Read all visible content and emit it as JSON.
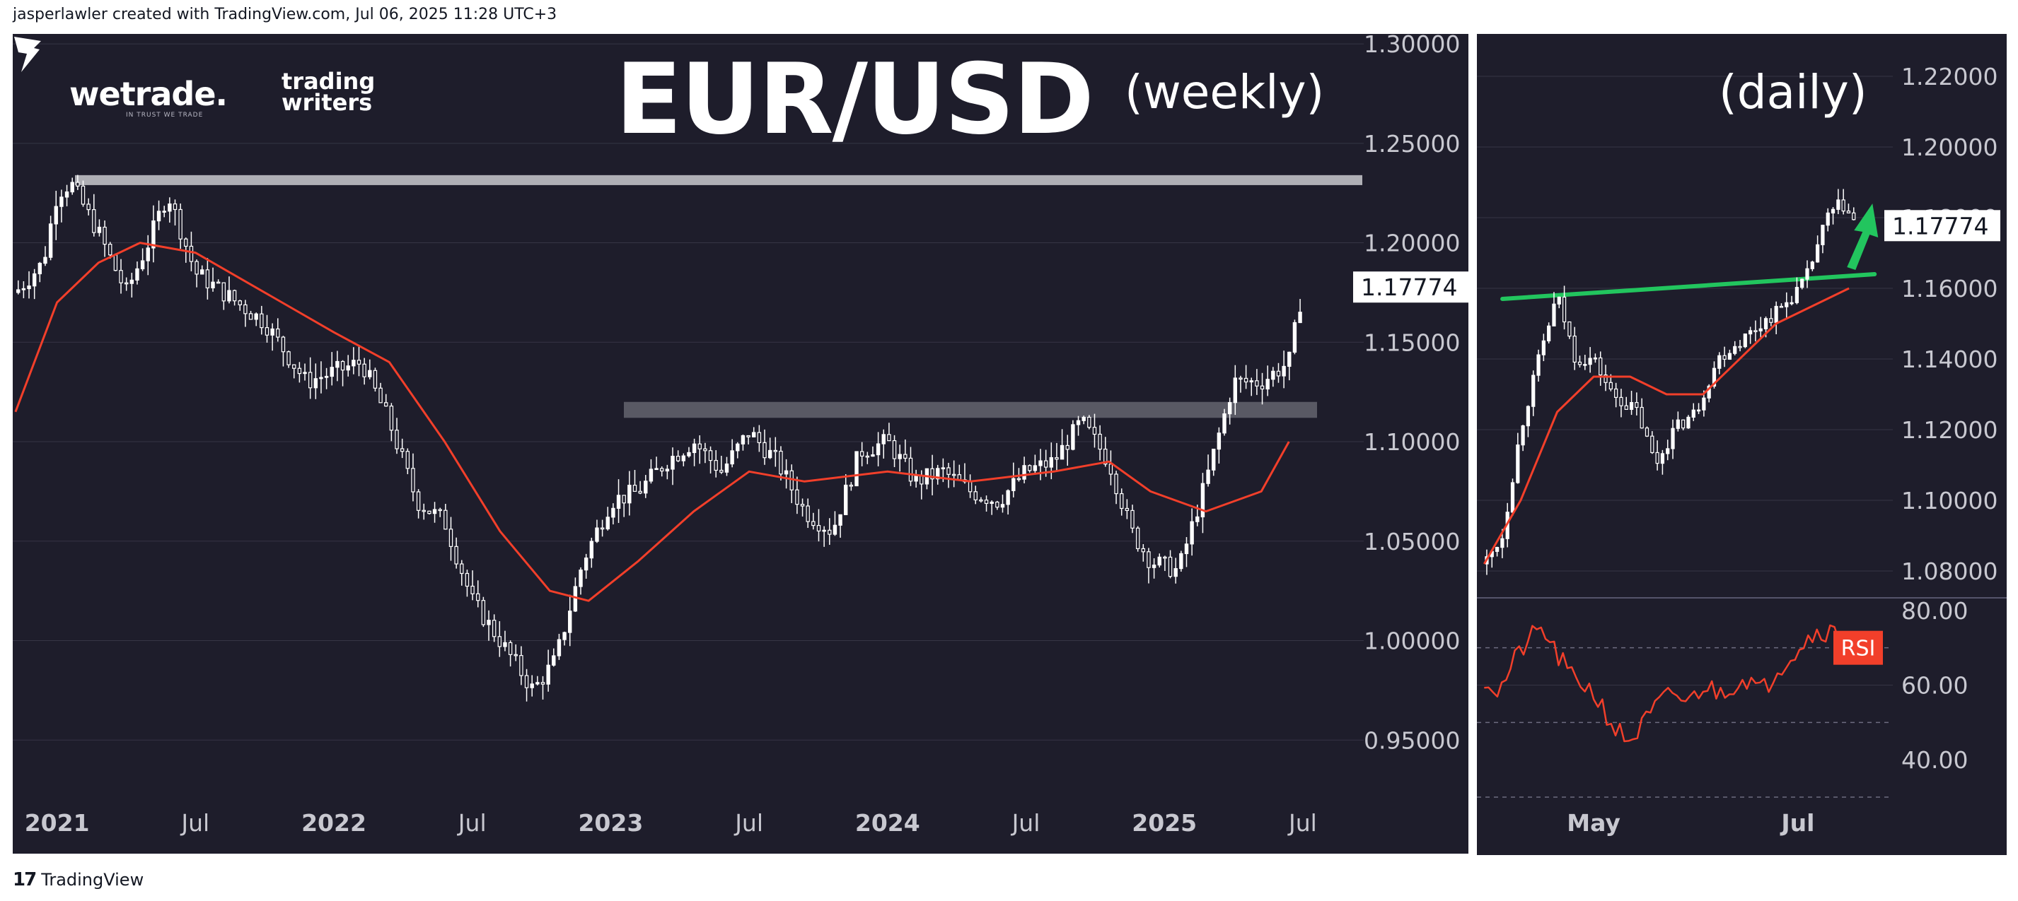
{
  "header": {
    "credit": "jasperlawler created with TradingView.com, Jul 06, 2025 11:28 UTC+3"
  },
  "footer": {
    "brand": "TradingView"
  },
  "watermarks": {
    "wetrade": "wetrade.",
    "wetrade_tagline": "IN TRUST WE TRADE",
    "trading_writers_line1": "trading",
    "trading_writers_line2": "writers"
  },
  "colors": {
    "background": "#1e1d2b",
    "candle": "#ffffff",
    "moving_average": "#f23f2a",
    "trendline": "#22c55e",
    "zone": "#8a8a94",
    "rsi_badge": "#f23f2a",
    "grid": "#363545"
  },
  "chart_data": [
    {
      "type": "candlestick",
      "title": "EUR/USD",
      "timeframe_label": "(weekly)",
      "x_tick_labels": [
        "2021",
        "Jul",
        "2022",
        "Jul",
        "2023",
        "Jul",
        "2024",
        "Jul",
        "2025",
        "Jul"
      ],
      "y_tick_labels": [
        "1.30000",
        "1.25000",
        "1.20000",
        "1.15000",
        "1.10000",
        "1.05000",
        "1.00000",
        "0.95000"
      ],
      "ylim": [
        0.9,
        1.305
      ],
      "last_price": "1.17774",
      "price_path": [
        [
          2020.85,
          1.175
        ],
        [
          2020.95,
          1.19
        ],
        [
          2021.0,
          1.225
        ],
        [
          2021.05,
          1.23
        ],
        [
          2021.15,
          1.205
        ],
        [
          2021.25,
          1.175
        ],
        [
          2021.33,
          1.2
        ],
        [
          2021.4,
          1.225
        ],
        [
          2021.5,
          1.185
        ],
        [
          2021.6,
          1.175
        ],
        [
          2021.75,
          1.16
        ],
        [
          2021.9,
          1.13
        ],
        [
          2022.0,
          1.135
        ],
        [
          2022.1,
          1.14
        ],
        [
          2022.2,
          1.11
        ],
        [
          2022.3,
          1.07
        ],
        [
          2022.4,
          1.06
        ],
        [
          2022.5,
          1.02
        ],
        [
          2022.6,
          1.0
        ],
        [
          2022.72,
          0.975
        ],
        [
          2022.8,
          0.99
        ],
        [
          2022.9,
          1.04
        ],
        [
          2023.0,
          1.07
        ],
        [
          2023.1,
          1.075
        ],
        [
          2023.2,
          1.09
        ],
        [
          2023.3,
          1.1
        ],
        [
          2023.4,
          1.085
        ],
        [
          2023.5,
          1.105
        ],
        [
          2023.6,
          1.09
        ],
        [
          2023.7,
          1.065
        ],
        [
          2023.8,
          1.055
        ],
        [
          2023.9,
          1.095
        ],
        [
          2024.0,
          1.1
        ],
        [
          2024.1,
          1.08
        ],
        [
          2024.2,
          1.085
        ],
        [
          2024.3,
          1.075
        ],
        [
          2024.4,
          1.07
        ],
        [
          2024.5,
          1.085
        ],
        [
          2024.6,
          1.09
        ],
        [
          2024.7,
          1.11
        ],
        [
          2024.8,
          1.09
        ],
        [
          2024.88,
          1.055
        ],
        [
          2024.95,
          1.04
        ],
        [
          2025.05,
          1.035
        ],
        [
          2025.15,
          1.08
        ],
        [
          2025.25,
          1.13
        ],
        [
          2025.35,
          1.13
        ],
        [
          2025.45,
          1.14
        ],
        [
          2025.5,
          1.177
        ]
      ],
      "moving_average_path": [
        [
          2020.85,
          1.115
        ],
        [
          2021.0,
          1.17
        ],
        [
          2021.15,
          1.19
        ],
        [
          2021.3,
          1.2
        ],
        [
          2021.5,
          1.195
        ],
        [
          2021.75,
          1.175
        ],
        [
          2022.0,
          1.155
        ],
        [
          2022.2,
          1.14
        ],
        [
          2022.4,
          1.1
        ],
        [
          2022.6,
          1.055
        ],
        [
          2022.78,
          1.025
        ],
        [
          2022.92,
          1.02
        ],
        [
          2023.1,
          1.04
        ],
        [
          2023.3,
          1.065
        ],
        [
          2023.5,
          1.085
        ],
        [
          2023.7,
          1.08
        ],
        [
          2024.0,
          1.085
        ],
        [
          2024.3,
          1.08
        ],
        [
          2024.6,
          1.085
        ],
        [
          2024.8,
          1.09
        ],
        [
          2024.95,
          1.075
        ],
        [
          2025.15,
          1.065
        ],
        [
          2025.35,
          1.075
        ],
        [
          2025.45,
          1.1
        ]
      ],
      "resistance_zone": [
        1.229,
        1.234
      ],
      "support_zone": [
        1.112,
        1.12
      ]
    },
    {
      "type": "candlestick",
      "timeframe_label": "(daily)",
      "x_tick_labels": [
        "May",
        "Jul"
      ],
      "y_tick_labels": [
        "1.22000",
        "1.20000",
        "1.18000",
        "1.16000",
        "1.14000",
        "1.12000",
        "1.10000",
        "1.08000"
      ],
      "ylim": [
        1.076,
        1.232
      ],
      "last_price": "1.17774",
      "price_path": [
        [
          0,
          1.082
        ],
        [
          5,
          1.09
        ],
        [
          10,
          1.12
        ],
        [
          15,
          1.14
        ],
        [
          20,
          1.158
        ],
        [
          25,
          1.14
        ],
        [
          30,
          1.14
        ],
        [
          35,
          1.13
        ],
        [
          42,
          1.125
        ],
        [
          47,
          1.11
        ],
        [
          52,
          1.12
        ],
        [
          58,
          1.125
        ],
        [
          64,
          1.14
        ],
        [
          70,
          1.145
        ],
        [
          76,
          1.15
        ],
        [
          82,
          1.155
        ],
        [
          88,
          1.162
        ],
        [
          94,
          1.18
        ],
        [
          98,
          1.184
        ],
        [
          102,
          1.178
        ]
      ],
      "moving_average_path": [
        [
          0,
          1.082
        ],
        [
          10,
          1.1
        ],
        [
          20,
          1.125
        ],
        [
          30,
          1.135
        ],
        [
          40,
          1.135
        ],
        [
          50,
          1.13
        ],
        [
          60,
          1.13
        ],
        [
          70,
          1.14
        ],
        [
          80,
          1.15
        ],
        [
          90,
          1.155
        ],
        [
          100,
          1.16
        ]
      ],
      "trendline": [
        [
          5,
          1.157
        ],
        [
          107,
          1.164
        ]
      ],
      "rsi": {
        "label": "RSI",
        "y_tick_labels": [
          "80.00",
          "60.00",
          "40.00"
        ],
        "ylim": [
          30,
          83
        ],
        "levels": [
          70,
          50,
          30
        ],
        "values": [
          [
            0,
            62
          ],
          [
            4,
            58
          ],
          [
            8,
            66
          ],
          [
            12,
            72
          ],
          [
            16,
            75
          ],
          [
            20,
            68
          ],
          [
            24,
            62
          ],
          [
            28,
            60
          ],
          [
            32,
            55
          ],
          [
            36,
            48
          ],
          [
            40,
            45
          ],
          [
            44,
            50
          ],
          [
            48,
            55
          ],
          [
            52,
            58
          ],
          [
            56,
            55
          ],
          [
            60,
            60
          ],
          [
            64,
            58
          ],
          [
            68,
            60
          ],
          [
            72,
            62
          ],
          [
            76,
            58
          ],
          [
            80,
            64
          ],
          [
            84,
            68
          ],
          [
            88,
            72
          ],
          [
            92,
            75
          ],
          [
            96,
            74
          ],
          [
            100,
            72
          ],
          [
            102,
            71
          ]
        ]
      }
    }
  ]
}
